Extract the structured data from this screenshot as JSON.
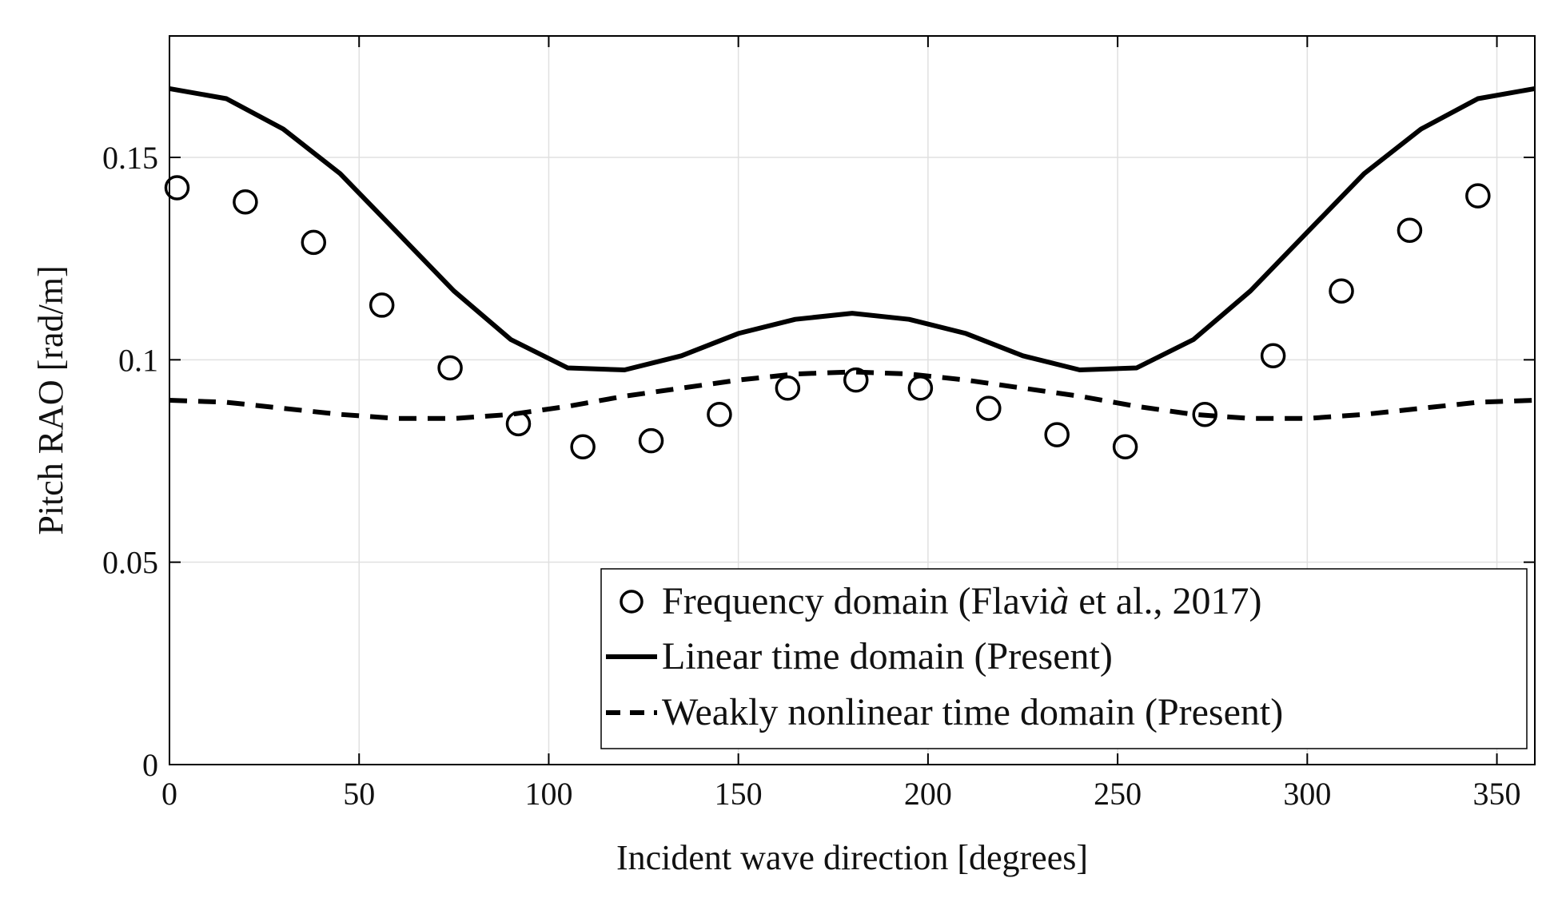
{
  "chart_data": {
    "type": "line",
    "title": "",
    "xlabel": "Incident wave direction [degrees]",
    "ylabel": "Pitch RAO [rad/m]",
    "xlim": [
      0,
      360
    ],
    "ylim": [
      0,
      0.18
    ],
    "grid": true,
    "xticks": [
      0,
      50,
      100,
      150,
      200,
      250,
      300,
      350
    ],
    "xtick_labels": [
      "0",
      "50",
      "100",
      "150",
      "200",
      "250",
      "300",
      "350"
    ],
    "yticks": [
      0,
      0.05,
      0.1,
      0.15
    ],
    "ytick_labels": [
      "0",
      "0.05",
      "0.1",
      "0.15"
    ],
    "legend_position": "bottom-right",
    "series": [
      {
        "name": "Frequency domain (Flavià et al., 2017)",
        "legend_parts": [
          "Frequency domain (Flavi",
          "à",
          " et al., 2017)"
        ],
        "style": "markers-circle",
        "x": [
          2,
          20,
          38,
          56,
          74,
          92,
          109,
          127,
          145,
          163,
          181,
          198,
          216,
          234,
          252,
          273,
          291,
          309,
          327,
          345
        ],
        "y": [
          0.1425,
          0.139,
          0.129,
          0.1135,
          0.098,
          0.0842,
          0.0785,
          0.08,
          0.0865,
          0.093,
          0.095,
          0.093,
          0.088,
          0.0815,
          0.0785,
          0.0865,
          0.101,
          0.117,
          0.132,
          0.1405
        ]
      },
      {
        "name": "Linear time domain (Present)",
        "legend_parts": [
          "Linear time domain (Present)"
        ],
        "style": "solid",
        "x": [
          0,
          15,
          30,
          45,
          60,
          75,
          90,
          105,
          120,
          135,
          150,
          165,
          180,
          195,
          210,
          225,
          240,
          255,
          270,
          285,
          300,
          315,
          330,
          345,
          360
        ],
        "y": [
          0.167,
          0.1645,
          0.157,
          0.146,
          0.1315,
          0.117,
          0.105,
          0.098,
          0.0975,
          0.101,
          0.1065,
          0.11,
          0.1115,
          0.11,
          0.1065,
          0.101,
          0.0975,
          0.098,
          0.105,
          0.117,
          0.1315,
          0.146,
          0.157,
          0.1645,
          0.167
        ]
      },
      {
        "name": "Weakly nonlinear time domain (Present)",
        "legend_parts": [
          "Weakly nonlinear time domain (Present)"
        ],
        "style": "dashed",
        "x": [
          0,
          15,
          30,
          45,
          60,
          75,
          90,
          105,
          120,
          135,
          150,
          165,
          180,
          195,
          210,
          225,
          240,
          255,
          270,
          285,
          300,
          315,
          330,
          345,
          360
        ],
        "y": [
          0.09,
          0.0895,
          0.088,
          0.0865,
          0.0855,
          0.0855,
          0.0865,
          0.0885,
          0.091,
          0.093,
          0.095,
          0.0965,
          0.097,
          0.0965,
          0.095,
          0.093,
          0.091,
          0.0885,
          0.0865,
          0.0855,
          0.0855,
          0.0865,
          0.088,
          0.0895,
          0.09
        ]
      }
    ]
  },
  "colors": {
    "line": "#000000",
    "grid": "#e0e0e0",
    "axis": "#000000",
    "background": "#ffffff"
  }
}
